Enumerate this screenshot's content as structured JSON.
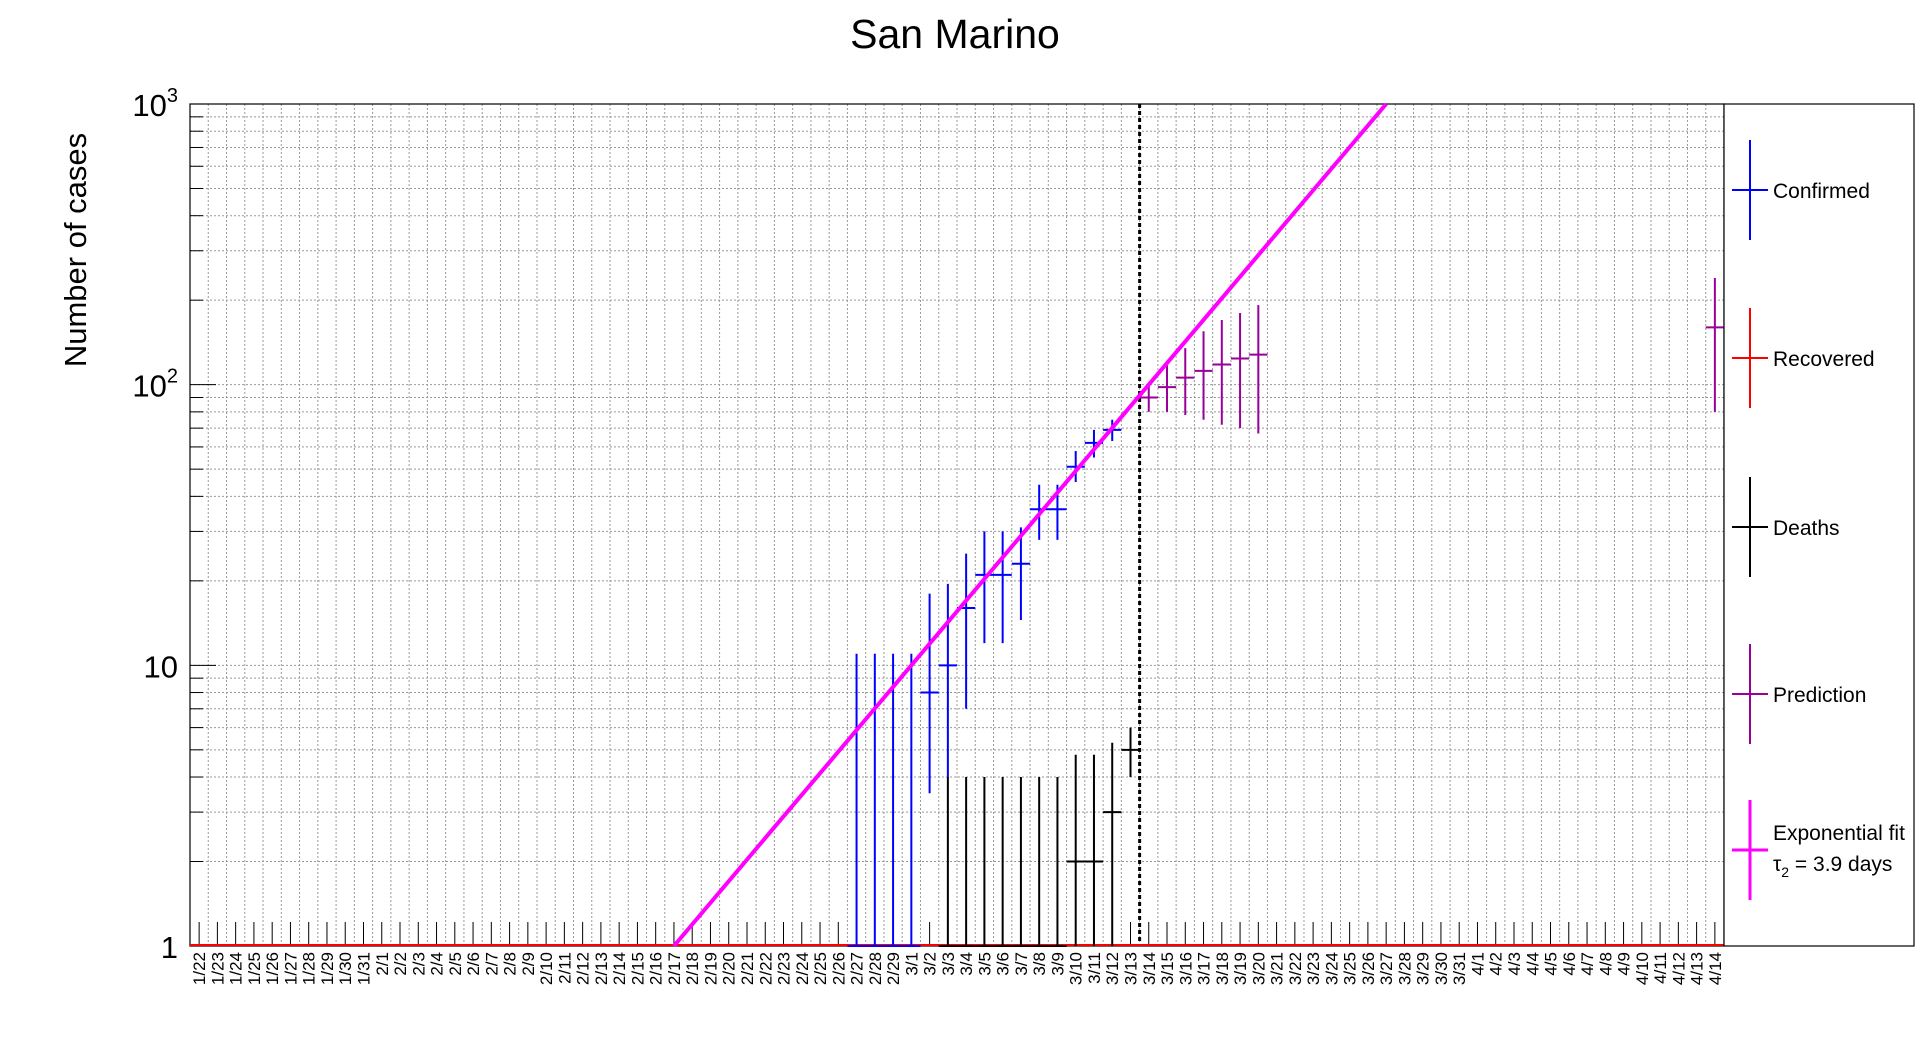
{
  "chart_data": {
    "type": "scatter",
    "title": "San Marino",
    "ylabel": "Number of cases",
    "xlabel": "",
    "y_scale": "log",
    "ylim": [
      1,
      1000
    ],
    "y_ticks": [
      {
        "value": 1,
        "label": "1",
        "exp": ""
      },
      {
        "value": 10,
        "label": "10",
        "exp": ""
      },
      {
        "value": 100,
        "label": "10",
        "exp": "2"
      },
      {
        "value": 1000,
        "label": "10",
        "exp": "3"
      }
    ],
    "grid": true,
    "x_categories": [
      "1/22",
      "1/23",
      "1/24",
      "1/25",
      "1/26",
      "1/27",
      "1/28",
      "1/29",
      "1/30",
      "1/31",
      "2/1",
      "2/2",
      "2/3",
      "2/4",
      "2/5",
      "2/6",
      "2/7",
      "2/8",
      "2/9",
      "2/10",
      "2/11",
      "2/12",
      "2/13",
      "2/14",
      "2/15",
      "2/16",
      "2/17",
      "2/18",
      "2/19",
      "2/20",
      "2/21",
      "2/22",
      "2/23",
      "2/24",
      "2/25",
      "2/26",
      "2/27",
      "2/28",
      "2/29",
      "3/1",
      "3/2",
      "3/3",
      "3/4",
      "3/5",
      "3/6",
      "3/7",
      "3/8",
      "3/9",
      "3/10",
      "3/11",
      "3/12",
      "3/13",
      "3/14",
      "3/15",
      "3/16",
      "3/17",
      "3/18",
      "3/19",
      "3/20",
      "3/21",
      "3/22",
      "3/23",
      "3/24",
      "3/25",
      "3/26",
      "3/27",
      "3/28",
      "3/29",
      "3/30",
      "3/31",
      "4/1",
      "4/2",
      "4/3",
      "4/4",
      "4/5",
      "4/6",
      "4/7",
      "4/8",
      "4/9",
      "4/10",
      "4/11",
      "4/12",
      "4/13",
      "4/14"
    ],
    "reference_line_date": "3/13",
    "series": [
      {
        "name": "Confirmed",
        "color": "#0000ff",
        "points": [
          {
            "x": "2/27",
            "y": 1,
            "lo": 1,
            "hi": 11
          },
          {
            "x": "2/28",
            "y": 1,
            "lo": 1,
            "hi": 11
          },
          {
            "x": "2/29",
            "y": 1,
            "lo": 1,
            "hi": 11
          },
          {
            "x": "3/1",
            "y": 1,
            "lo": 1,
            "hi": 11
          },
          {
            "x": "3/2",
            "y": 8,
            "lo": 3.5,
            "hi": 18
          },
          {
            "x": "3/3",
            "y": 10,
            "lo": 4,
            "hi": 19.5
          },
          {
            "x": "3/4",
            "y": 16,
            "lo": 7,
            "hi": 25
          },
          {
            "x": "3/5",
            "y": 21,
            "lo": 12,
            "hi": 30
          },
          {
            "x": "3/6",
            "y": 21,
            "lo": 12,
            "hi": 30
          },
          {
            "x": "3/7",
            "y": 23,
            "lo": 14.5,
            "hi": 31
          },
          {
            "x": "3/8",
            "y": 36,
            "lo": 28,
            "hi": 44
          },
          {
            "x": "3/9",
            "y": 36,
            "lo": 28,
            "hi": 44
          },
          {
            "x": "3/10",
            "y": 51,
            "lo": 45,
            "hi": 58
          },
          {
            "x": "3/11",
            "y": 62,
            "lo": 55,
            "hi": 69
          },
          {
            "x": "3/12",
            "y": 69,
            "lo": 63,
            "hi": 75
          }
        ]
      },
      {
        "name": "Recovered",
        "color": "#ff0000",
        "points": []
      },
      {
        "name": "Deaths",
        "color": "#000000",
        "points": [
          {
            "x": "3/3",
            "y": 1,
            "lo": 1,
            "hi": 4
          },
          {
            "x": "3/4",
            "y": 1,
            "lo": 1,
            "hi": 4
          },
          {
            "x": "3/5",
            "y": 1,
            "lo": 1,
            "hi": 4
          },
          {
            "x": "3/6",
            "y": 1,
            "lo": 1,
            "hi": 4
          },
          {
            "x": "3/7",
            "y": 1,
            "lo": 1,
            "hi": 4
          },
          {
            "x": "3/8",
            "y": 1,
            "lo": 1,
            "hi": 4
          },
          {
            "x": "3/9",
            "y": 1,
            "lo": 1,
            "hi": 4
          },
          {
            "x": "3/10",
            "y": 2,
            "lo": 1,
            "hi": 4.8
          },
          {
            "x": "3/11",
            "y": 2,
            "lo": 1,
            "hi": 4.8
          },
          {
            "x": "3/12",
            "y": 3,
            "lo": 1,
            "hi": 5.3
          },
          {
            "x": "3/13",
            "y": 5,
            "lo": 4,
            "hi": 6
          }
        ]
      },
      {
        "name": "Prediction",
        "color": "#990099",
        "points": [
          {
            "x": "3/14",
            "y": 90,
            "lo": 80,
            "hi": 101
          },
          {
            "x": "3/15",
            "y": 98,
            "lo": 80,
            "hi": 117
          },
          {
            "x": "3/16",
            "y": 106,
            "lo": 78,
            "hi": 135
          },
          {
            "x": "3/17",
            "y": 112,
            "lo": 75,
            "hi": 155
          },
          {
            "x": "3/18",
            "y": 118,
            "lo": 72,
            "hi": 170
          },
          {
            "x": "3/19",
            "y": 124,
            "lo": 70,
            "hi": 180
          },
          {
            "x": "3/20",
            "y": 128,
            "lo": 67,
            "hi": 192
          },
          {
            "x": "4/14",
            "y": 160,
            "lo": 80,
            "hi": 240
          }
        ]
      },
      {
        "name": "Exponential fit",
        "color": "#ff00ff",
        "fit": true,
        "line": {
          "x0": "2/17",
          "y0": 1,
          "x1": "3/27",
          "y1": 1000
        }
      }
    ],
    "fit_annotation": {
      "symbol": "τ",
      "subscript": "2",
      "text": " = 3.9 days"
    },
    "legend_placement": "right"
  }
}
